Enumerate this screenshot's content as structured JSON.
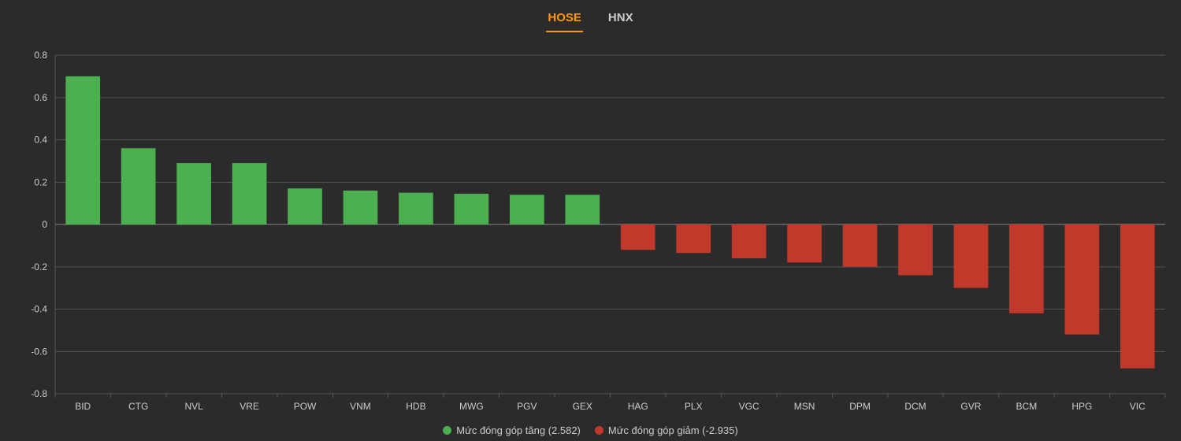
{
  "tabs": {
    "active": "HOSE",
    "inactive": "HNX"
  },
  "chart": {
    "type": "bar",
    "background_color": "#2b2b2b",
    "grid_color": "#555555",
    "baseline_color": "#888888",
    "text_color": "#cccccc",
    "label_fontsize": 12,
    "ylim_min": -0.8,
    "ylim_max": 0.8,
    "ytick_step": 0.2,
    "bar_width_ratio": 0.62,
    "positive_color": "#4caf50",
    "negative_color": "#c0392b",
    "categories": [
      "BID",
      "CTG",
      "NVL",
      "VRE",
      "POW",
      "VNM",
      "HDB",
      "MWG",
      "PGV",
      "GEX",
      "HAG",
      "PLX",
      "VGC",
      "MSN",
      "DPM",
      "DCM",
      "GVR",
      "BCM",
      "HPG",
      "VIC"
    ],
    "values": [
      0.7,
      0.36,
      0.29,
      0.29,
      0.17,
      0.16,
      0.15,
      0.145,
      0.14,
      0.14,
      -0.12,
      -0.135,
      -0.16,
      -0.18,
      -0.2,
      -0.24,
      -0.3,
      -0.42,
      -0.52,
      -0.68
    ]
  },
  "legend": {
    "positive_label": "Mức đóng góp tăng (2.582)",
    "negative_label": "Mức đóng góp giảm (-2.935)"
  }
}
